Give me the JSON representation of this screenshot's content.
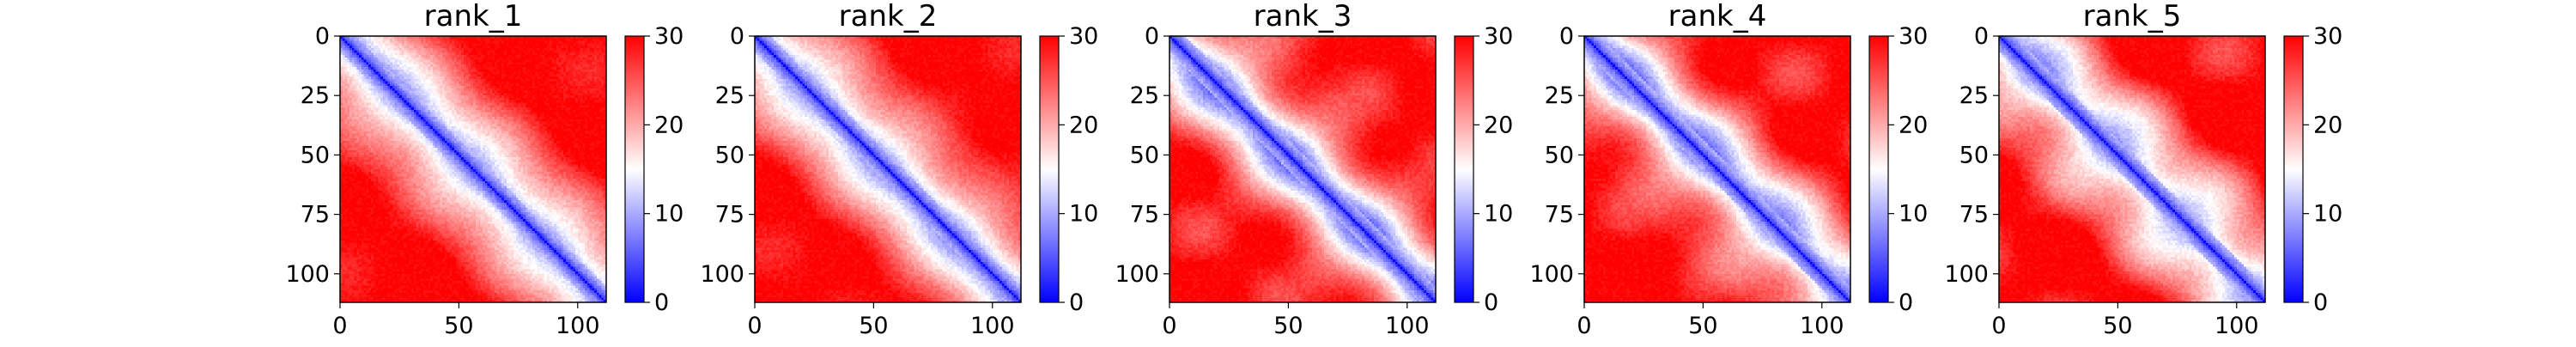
{
  "chart_data": {
    "type": "heatmap",
    "colormap": {
      "low": "#0000ff",
      "mid": "#ffffff",
      "high": "#ff0000"
    },
    "value_range": [
      0,
      30
    ],
    "colorbar_ticks": [
      "0",
      "10",
      "20",
      "30"
    ],
    "x_ticks": [
      "0",
      "50",
      "100"
    ],
    "y_ticks": [
      "0",
      "25",
      "50",
      "75",
      "100"
    ],
    "xlim": [
      0,
      112
    ],
    "ylim": [
      112,
      0
    ],
    "grid": false,
    "panels": [
      {
        "title": "rank_1"
      },
      {
        "title": "rank_2"
      },
      {
        "title": "rank_3"
      },
      {
        "title": "rank_4"
      },
      {
        "title": "rank_5"
      }
    ]
  }
}
